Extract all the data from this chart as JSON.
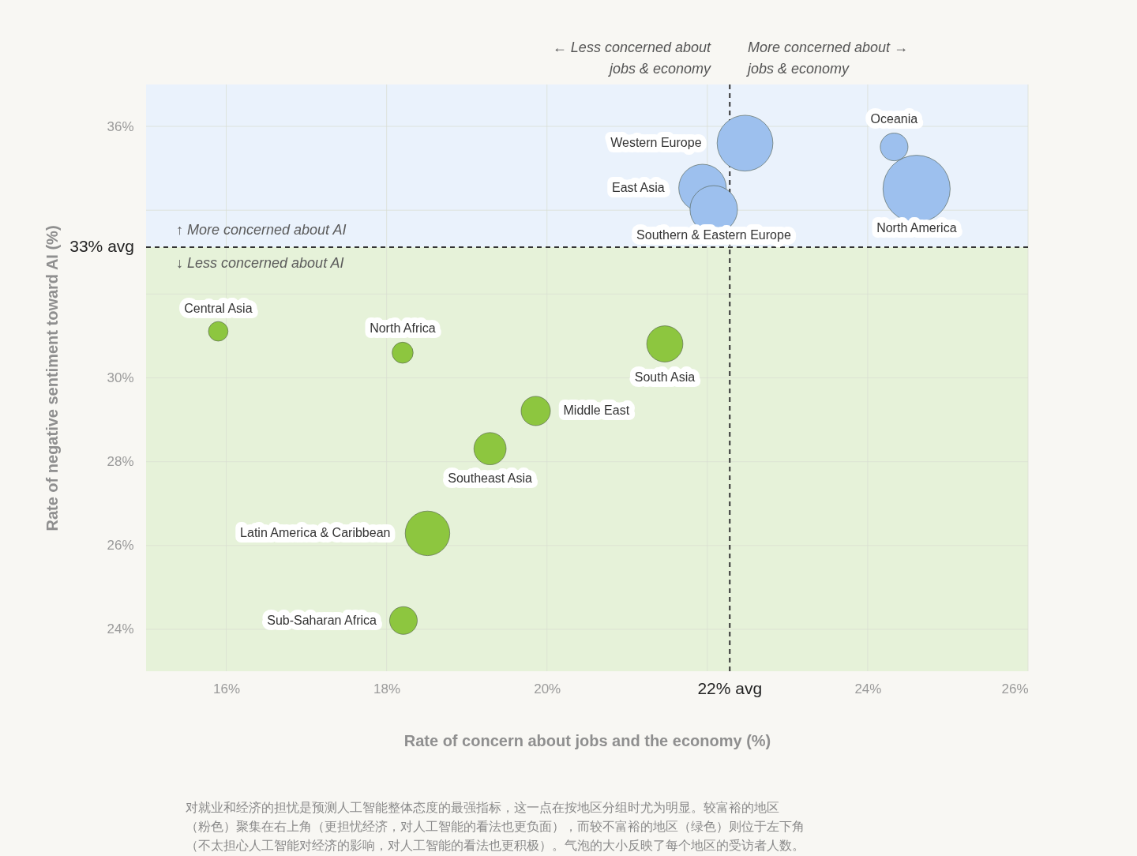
{
  "chart_data": {
    "type": "bubble",
    "xlabel": "Rate of concern about jobs and the economy (%)",
    "ylabel": "Rate of negative sentiment toward AI (%)",
    "xlim": [
      15,
      26
    ],
    "ylim": [
      23,
      37
    ],
    "xticks": [
      {
        "value": 16,
        "label": "16%"
      },
      {
        "value": 18,
        "label": "18%"
      },
      {
        "value": 20,
        "label": "20%"
      },
      {
        "value": 22,
        "label": null
      },
      {
        "value": 24,
        "label": "24%"
      },
      {
        "value": 26,
        "label": "26%"
      }
    ],
    "yticks": [
      {
        "value": 24,
        "label": "24%"
      },
      {
        "value": 26,
        "label": "26%"
      },
      {
        "value": 28,
        "label": "28%"
      },
      {
        "value": 30,
        "label": "30%"
      },
      {
        "value": 32,
        "label": null
      },
      {
        "value": 34,
        "label": null
      },
      {
        "value": 36,
        "label": "36%"
      }
    ],
    "grid": true,
    "series": [
      {
        "name": "Western Europe",
        "color": "#9dc0ee",
        "x": [
          22.47
        ],
        "values": [
          35.6
        ],
        "sizes": [
          0.69
        ]
      },
      {
        "name": "East Asia",
        "color": "#9dc0ee",
        "x": [
          21.94
        ],
        "values": [
          34.53
        ],
        "sizes": [
          0.5
        ]
      },
      {
        "name": "Southern & Eastern Europe",
        "color": "#9dc0ee",
        "x": [
          22.08
        ],
        "values": [
          34.02
        ],
        "sizes": [
          0.5
        ]
      },
      {
        "name": "Oceania",
        "color": "#9dc0ee",
        "x": [
          24.33
        ],
        "values": [
          35.51
        ],
        "sizes": [
          0.17
        ]
      },
      {
        "name": "North America",
        "color": "#9dc0ee",
        "x": [
          24.61
        ],
        "values": [
          34.51
        ],
        "sizes": [
          1
        ]
      },
      {
        "name": "Central Asia",
        "color": "#8dc63f",
        "x": [
          15.9
        ],
        "values": [
          31.11
        ],
        "sizes": [
          0.085
        ]
      },
      {
        "name": "North Africa",
        "color": "#8dc63f",
        "x": [
          18.2
        ],
        "values": [
          30.6
        ],
        "sizes": [
          0.098
        ]
      },
      {
        "name": "South Asia",
        "color": "#8dc63f",
        "x": [
          21.47
        ],
        "values": [
          30.81
        ],
        "sizes": [
          0.29
        ]
      },
      {
        "name": "Middle East",
        "color": "#8dc63f",
        "x": [
          19.86
        ],
        "values": [
          29.21
        ],
        "sizes": [
          0.19
        ]
      },
      {
        "name": "Southeast Asia",
        "color": "#8dc63f",
        "x": [
          19.29
        ],
        "values": [
          28.31
        ],
        "sizes": [
          0.23
        ]
      },
      {
        "name": "Latin America & Caribbean",
        "color": "#8dc63f",
        "x": [
          18.51
        ],
        "values": [
          26.29
        ],
        "sizes": [
          0.44
        ]
      },
      {
        "name": "Sub-Saharan Africa",
        "color": "#8dc63f",
        "x": [
          18.21
        ],
        "values": [
          24.21
        ],
        "sizes": [
          0.17
        ]
      }
    ],
    "bands": [
      {
        "axis": "y",
        "from": 33.12,
        "to": 37,
        "label": "↑ More concerned about AI",
        "color": "#eaf2fc"
      },
      {
        "axis": "y",
        "from": 23,
        "to": 33.12,
        "label": "↓ Less concerned about AI",
        "color": "#e6f2d9"
      }
    ],
    "ref_lines": [
      {
        "axis": "y",
        "value": 33.12,
        "label": "33% avg",
        "line_style": "dashed"
      },
      {
        "axis": "x",
        "value": 22.28,
        "label": "22% avg",
        "line_style": "dashed"
      }
    ],
    "annotations": [
      "← Less concerned about\njobs & economy",
      "More concerned about →\njobs & economy",
      "对就业和经济的担忧是预测人工智能整体态度的最强指标，这一点在按地区分组时尤为明显。较富裕的地区（粉色）聚集在右上角（更担忧经济，对人工智能的看法也更负面），而较不富裕的地区（绿色）则位于左下角（不太担心人工智能对经济的影响，对人工智能的看法也更积极）。气泡的大小反映了每个地区的受访者人数。"
    ]
  }
}
